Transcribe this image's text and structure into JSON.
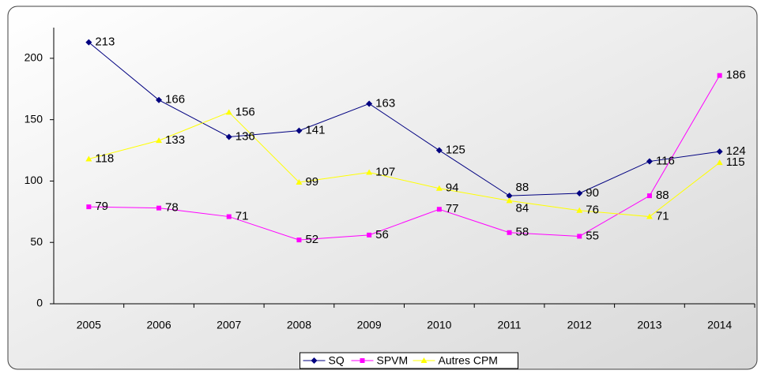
{
  "chart_data": {
    "type": "line",
    "categories": [
      "2005",
      "2006",
      "2007",
      "2008",
      "2009",
      "2010",
      "2011",
      "2012",
      "2013",
      "2014"
    ],
    "series": [
      {
        "name": "SQ",
        "color": "#000080",
        "marker": "diamond",
        "values": [
          213,
          166,
          136,
          141,
          163,
          125,
          88,
          90,
          116,
          124
        ]
      },
      {
        "name": "SPVM",
        "color": "#ff00ff",
        "marker": "square",
        "values": [
          79,
          78,
          71,
          52,
          56,
          77,
          58,
          55,
          88,
          186
        ]
      },
      {
        "name": "Autres CPM",
        "color": "#ffff00",
        "marker": "triangle",
        "values": [
          118,
          133,
          156,
          99,
          107,
          94,
          84,
          76,
          71,
          115
        ]
      }
    ],
    "ylim": [
      0,
      225
    ],
    "yticks": [
      0,
      50,
      100,
      150,
      200
    ],
    "grid": false,
    "legend": "bottom"
  }
}
